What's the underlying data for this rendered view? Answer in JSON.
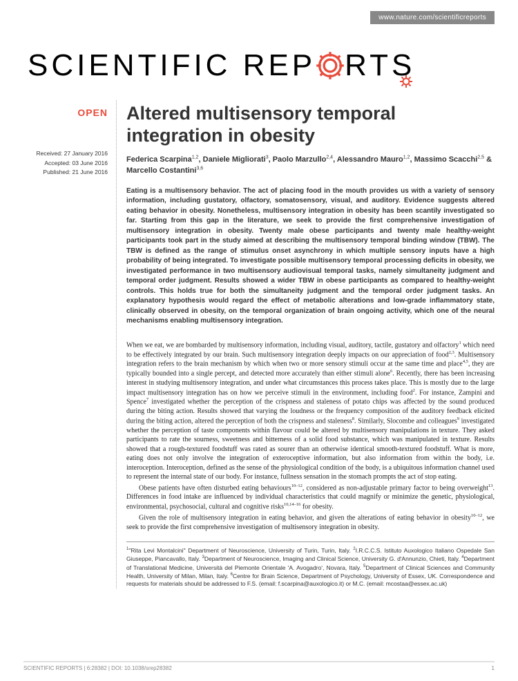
{
  "header": {
    "url": "www.nature.com/scientificreports",
    "journal_name_1": "SCIENTIFIC",
    "journal_name_2": "REP",
    "journal_name_3": "RTS",
    "gear_color": "#e74c3c"
  },
  "badge": {
    "open": "OPEN"
  },
  "dates": {
    "received": "Received: 27 January 2016",
    "accepted": "Accepted: 03 June 2016",
    "published": "Published: 21 June 2016"
  },
  "article": {
    "title": "Altered multisensory temporal integration in obesity",
    "authors_html": "Federica Scarpina<sup>1,2</sup>, Daniele Migliorati<sup>3</sup>, Paolo Marzullo<sup>2,4</sup>, Alessandro Mauro<sup>1,2</sup>, Massimo Scacchi<sup>2,5</sup> & Marcello Costantini<sup>3,6</sup>",
    "abstract": "Eating is a multisensory behavior. The act of placing food in the mouth provides us with a variety of sensory information, including gustatory, olfactory, somatosensory, visual, and auditory. Evidence suggests altered eating behavior in obesity. Nonetheless, multisensory integration in obesity has been scantily investigated so far. Starting from this gap in the literature, we seek to provide the first comprehensive investigation of multisensory integration in obesity. Twenty male obese participants and twenty male healthy-weight participants took part in the study aimed at describing the multisensory temporal binding window (TBW). The TBW is defined as the range of stimulus onset asynchrony in which multiple sensory inputs have a high probability of being integrated. To investigate possible multisensory temporal processing deficits in obesity, we investigated performance in two multisensory audiovisual temporal tasks, namely simultaneity judgment and temporal order judgment. Results showed a wider TBW in obese participants as compared to healthy-weight controls. This holds true for both the simultaneity judgment and the temporal order judgment tasks. An explanatory hypothesis would regard the effect of metabolic alterations and low-grade inflammatory state, clinically observed in obesity, on the temporal organization of brain ongoing activity, which one of the neural mechanisms enabling multisensory integration.",
    "body_p1": "When we eat, we are bombarded by multisensory information, including visual, auditory, tactile, gustatory and olfactory<sup>1</sup> which need to be effectively integrated by our brain. Such multisensory integration deeply impacts on our appreciation of food<sup>2,3</sup>. Multisensory integration refers to the brain mechanism by which when two or more sensory stimuli occur at the same time and place<sup>4,5</sup>, they are typically bounded into a single percept, and detected more accurately than either stimuli alone<sup>6</sup>. Recently, there has been increasing interest in studying multisensory integration, and under what circumstances this process takes place. This is mostly due to the large impact multisensory integration has on how we perceive stimuli in the environment, including food<sup>2</sup>. For instance, Zampini and Spence<sup>7</sup> investigated whether the perception of the crispness and staleness of potato chips was affected by the sound produced during the biting action. Results showed that varying the loudness or the frequency composition of the auditory feedback elicited during the biting action, altered the perception of both the crispness and staleness<sup>8</sup>. Similarly, Slocombe and colleagues<sup>9</sup> investigated whether the perception of taste components within flavour could be altered by multisensory manipulations in texture. They asked participants to rate the sourness, sweetness and bitterness of a solid food substance, which was manipulated in texture. Results showed that a rough-textured foodstuff was rated as sourer than an otherwise identical smooth-textured foodstuff. What is more, eating does not only involve the integration of exteroceptive information, but also information from within the body, i.e. interoception. Interoception, defined as the sense of the physiological condition of the body, is a ubiquitous information channel used to represent the internal state of our body. For instance, fullness sensation in the stomach prompts the act of stop eating.",
    "body_p2": "Obese patients have often disturbed eating behaviours<sup>10–12</sup>, considered as non-adjustable primary factor to being overweight<sup>13</sup>. Differences in food intake are influenced by individual characteristics that could magnify or minimize the genetic, physiological, environmental, psychosocial, cultural and cognitive risks<sup>10,14–16</sup> for obesity.",
    "body_p3": "Given the role of multisensory integration in eating behavior, and given the alterations of eating behavior in obesity<sup>10–12</sup>, we seek to provide the first comprehensive investigation of multisensory integration in obesity.",
    "affiliations": "<sup>1</sup>\"Rita Levi Montalcini\" Department of Neuroscience, University of Turin, Turin, Italy. <sup>2</sup>I.R.C.C.S. Istituto Auxologico Italiano Ospedale San Giuseppe, Piancavallo, Italy. <sup>3</sup>Department of Neuroscience, Imaging and Clinical Science, University G. d'Annunzio, Chieti, Italy. <sup>4</sup>Department of Translational Medicine, Università del Piemonte Orientale 'A. Avogadro', Novara, Italy. <sup>5</sup>Department of Clinical Sciences and Community Health, University of Milan, Milan, Italy. <sup>6</sup>Centre for Brain Science, Department of Psychology, University of Essex, UK. Correspondence and requests for materials should be addressed to F.S. (email: f.scarpina@auxologico.it) or M.C. (email: mcostaa@essex.ac.uk)"
  },
  "footer": {
    "citation": "SCIENTIFIC REPORTS | 6:28382 | DOI: 10.1038/srep28382",
    "page": "1"
  }
}
